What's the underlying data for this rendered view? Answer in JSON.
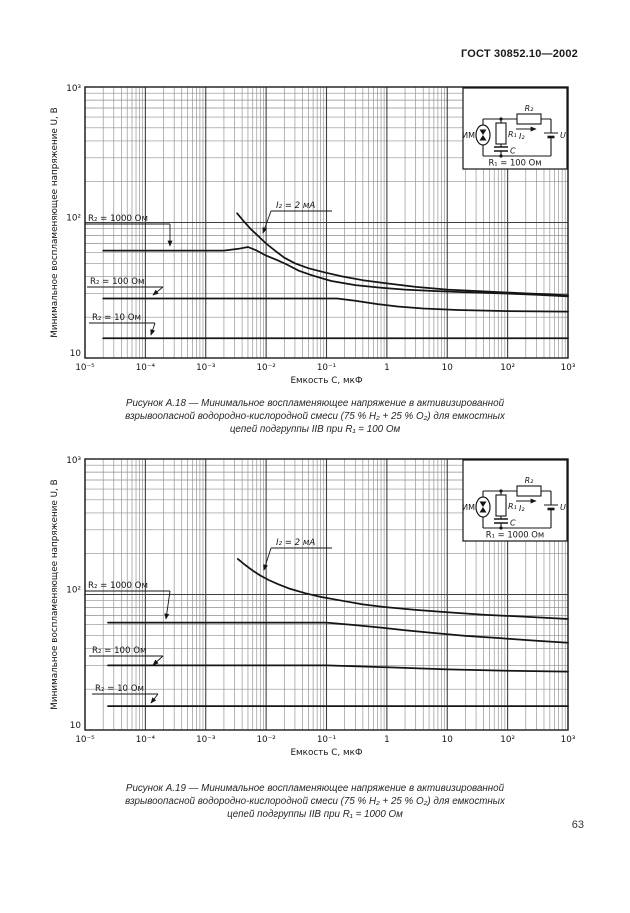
{
  "page": {
    "header": "ГОСТ 30852.10—2002",
    "page_number": "63"
  },
  "colors": {
    "ink": "#151515",
    "grid_minor": "#8f8f8f",
    "grid_major": "#3f3f3f"
  },
  "chart_data": [
    {
      "id": "figure-a18",
      "type": "line",
      "x_scale": "log",
      "y_scale": "log",
      "xlim": [
        1e-05,
        1000
      ],
      "ylim": [
        10,
        1000
      ],
      "xlabel": "Емкость С, мкФ",
      "ylabel": "Минимальное воспламеняющее напряжение U, В",
      "x_tick_labels": [
        "10⁻⁵",
        "10⁻⁴",
        "10⁻³",
        "10⁻²",
        "10⁻¹",
        "1",
        "10",
        "10²",
        "10³"
      ],
      "y_tick_labels": [
        "10",
        "10²",
        "10³"
      ],
      "grid": "log-log, minor decades shown",
      "series": [
        {
          "name": "I₂ = 2 мА",
          "points": [
            [
              0.0033,
              117
            ],
            [
              0.0042,
              103
            ],
            [
              0.0055,
              90
            ],
            [
              0.0075,
              79
            ],
            [
              0.01,
              70
            ],
            [
              0.014,
              62
            ],
            [
              0.02,
              55
            ],
            [
              0.03,
              50
            ],
            [
              0.05,
              46
            ],
            [
              0.09,
              43
            ],
            [
              0.18,
              40
            ],
            [
              0.4,
              37.5
            ],
            [
              1,
              35.5
            ],
            [
              3,
              33.5
            ],
            [
              10,
              32
            ],
            [
              40,
              31
            ],
            [
              200,
              30
            ],
            [
              1000,
              29
            ]
          ]
        },
        {
          "name": "R₂ = 1000 Ом",
          "points": [
            [
              2e-05,
              62
            ],
            [
              0.002,
              62
            ],
            [
              0.0035,
              64
            ],
            [
              0.005,
              66
            ],
            [
              0.007,
              62
            ],
            [
              0.01,
              57
            ],
            [
              0.015,
              53
            ],
            [
              0.022,
              49
            ],
            [
              0.035,
              44
            ],
            [
              0.06,
              40.5
            ],
            [
              0.12,
              37
            ],
            [
              0.3,
              34.5
            ],
            [
              0.8,
              33
            ],
            [
              2,
              32
            ],
            [
              6,
              31.2
            ],
            [
              20,
              30.6
            ],
            [
              80,
              30
            ],
            [
              300,
              29.3
            ],
            [
              1000,
              28.5
            ]
          ]
        },
        {
          "name": "R₂ = 100 Ом",
          "points": [
            [
              2e-05,
              27.5
            ],
            [
              0.15,
              27.5
            ],
            [
              0.3,
              26.5
            ],
            [
              0.7,
              25
            ],
            [
              1.5,
              24
            ],
            [
              4,
              23.2
            ],
            [
              15,
              22.6
            ],
            [
              100,
              22.2
            ],
            [
              1000,
              22
            ]
          ]
        },
        {
          "name": "R₂ = 10 Ом",
          "points": [
            [
              2e-05,
              14
            ],
            [
              1000,
              14
            ]
          ]
        }
      ],
      "inset": {
        "labels": {
          "im": "ИМ",
          "r1": "R₁",
          "r2": "R₂",
          "c": "C",
          "u": "U",
          "i2": "I₂"
        },
        "caption": "R₁ = 100 Ом"
      },
      "caption": [
        "Рисунок А.18 — Минимальное воспламеняющее напряжение в активизированной",
        "взрывоопасной водородно-кислородной смеси (75 % Н₂ + 25 % О₂) для емкостных",
        "цепей подгруппы IIВ при R₁ = 100 Ом"
      ]
    },
    {
      "id": "figure-a19",
      "type": "line",
      "x_scale": "log",
      "y_scale": "log",
      "xlim": [
        1e-05,
        1000
      ],
      "ylim": [
        10,
        1000
      ],
      "xlabel": "Емкость С, мкФ",
      "ylabel": "Минимальное воспламеняющее напряжение U, В",
      "x_tick_labels": [
        "10⁻⁵",
        "10⁻⁴",
        "10⁻³",
        "10⁻²",
        "10⁻¹",
        "1",
        "10",
        "10²",
        "10³"
      ],
      "y_tick_labels": [
        "10",
        "10²",
        "10³"
      ],
      "grid": "log-log, minor decades shown",
      "series": [
        {
          "name": "I₂ = 2 мА",
          "points": [
            [
              0.0034,
              183
            ],
            [
              0.0045,
              165
            ],
            [
              0.006,
              150
            ],
            [
              0.008,
              138
            ],
            [
              0.011,
              128
            ],
            [
              0.016,
              119
            ],
            [
              0.025,
              110
            ],
            [
              0.045,
              102
            ],
            [
              0.08,
              96
            ],
            [
              0.18,
              90
            ],
            [
              0.4,
              84.5
            ],
            [
              1,
              80.5
            ],
            [
              3,
              77
            ],
            [
              10,
              74
            ],
            [
              40,
              71
            ],
            [
              200,
              68.5
            ],
            [
              1000,
              66
            ]
          ]
        },
        {
          "name": "R₂ = 1000 Ом",
          "points": [
            [
              2.4e-05,
              62
            ],
            [
              0.1,
              62
            ],
            [
              0.3,
              59.5
            ],
            [
              0.8,
              57
            ],
            [
              2,
              54.5
            ],
            [
              6,
              52
            ],
            [
              20,
              49.5
            ],
            [
              80,
              47.5
            ],
            [
              300,
              45.5
            ],
            [
              1000,
              44
            ]
          ]
        },
        {
          "name": "R₂ = 100 Ом",
          "points": [
            [
              2.4e-05,
              30
            ],
            [
              0.1,
              30
            ],
            [
              1,
              29
            ],
            [
              10,
              28
            ],
            [
              100,
              27.4
            ],
            [
              1000,
              27
            ]
          ]
        },
        {
          "name": "R₂ = 10 Ом",
          "points": [
            [
              2.4e-05,
              15
            ],
            [
              1000,
              15
            ]
          ]
        }
      ],
      "inset": {
        "labels": {
          "im": "ИМ",
          "r1": "R₁",
          "r2": "R₂",
          "c": "C",
          "u": "U",
          "i2": "I₂"
        },
        "caption": "R₁ = 1000 Ом"
      },
      "caption": [
        "Рисунок А.19 — Минимальное воспламеняющее напряжение в активизированной",
        "взрывоопасной водородно-кислородной смеси (75 % Н₂ + 25 % О₂) для емкостных",
        "цепей подгруппы IIВ при R₁ = 1000 Ом"
      ]
    }
  ]
}
